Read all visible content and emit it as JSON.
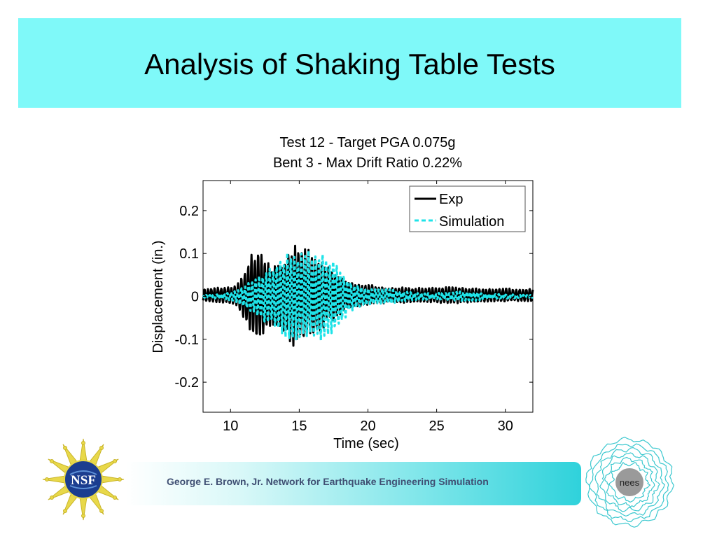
{
  "slide": {
    "title": "Analysis of Shaking Table Tests",
    "title_bar_color": "#7ff9f9"
  },
  "footer": {
    "text": "George E. Brown, Jr. Network for Earthquake Engineering Simulation",
    "nees_label": "nees",
    "nsf_label": "NSF"
  },
  "chart_data": {
    "type": "line",
    "title": [
      "Test 12 - Target PGA 0.075g",
      "Bent 3 - Max Drift Ratio 0.22%"
    ],
    "xlabel": "Time (sec)",
    "ylabel": "Displacement (in.)",
    "xlim": [
      8,
      32
    ],
    "ylim": [
      -0.27,
      0.27
    ],
    "xticks": [
      10,
      15,
      20,
      25,
      30
    ],
    "yticks": [
      0.2,
      0.1,
      0,
      -0.1,
      -0.2
    ],
    "ytick_labels": [
      "0.2",
      "0.1",
      "0",
      "-0.1",
      "-0.2"
    ],
    "legend_position": "top-right",
    "series": [
      {
        "name": "Exp",
        "color": "#000000",
        "style": "solid",
        "envelope": [
          [
            8.0,
            0.015
          ],
          [
            9.0,
            0.018
          ],
          [
            10.0,
            0.02
          ],
          [
            10.5,
            0.025
          ],
          [
            11.0,
            0.06
          ],
          [
            11.5,
            0.1
          ],
          [
            12.0,
            0.11
          ],
          [
            12.5,
            0.085
          ],
          [
            13.0,
            0.07
          ],
          [
            13.5,
            0.08
          ],
          [
            14.0,
            0.09
          ],
          [
            14.5,
            0.12
          ],
          [
            15.0,
            0.115
          ],
          [
            15.5,
            0.11
          ],
          [
            16.0,
            0.1
          ],
          [
            16.5,
            0.09
          ],
          [
            17.0,
            0.07
          ],
          [
            17.5,
            0.06
          ],
          [
            18.0,
            0.05
          ],
          [
            18.5,
            0.035
          ],
          [
            19.0,
            0.03
          ],
          [
            20.0,
            0.025
          ],
          [
            21.0,
            0.02
          ],
          [
            22.0,
            0.018
          ],
          [
            23.0,
            0.018
          ],
          [
            24.0,
            0.017
          ],
          [
            25.0,
            0.018
          ],
          [
            26.0,
            0.02
          ],
          [
            27.0,
            0.018
          ],
          [
            28.0,
            0.016
          ],
          [
            29.0,
            0.015
          ],
          [
            30.0,
            0.016
          ],
          [
            31.0,
            0.015
          ],
          [
            32.0,
            0.015
          ]
        ]
      },
      {
        "name": "Simulation",
        "color": "#1fe3e8",
        "style": "dashed",
        "envelope": [
          [
            8.0,
            0.003
          ],
          [
            9.0,
            0.005
          ],
          [
            10.0,
            0.01
          ],
          [
            10.5,
            0.015
          ],
          [
            11.0,
            0.025
          ],
          [
            11.5,
            0.04
          ],
          [
            12.0,
            0.05
          ],
          [
            12.5,
            0.06
          ],
          [
            13.0,
            0.07
          ],
          [
            13.5,
            0.085
          ],
          [
            14.0,
            0.1
          ],
          [
            14.5,
            0.12
          ],
          [
            15.0,
            0.1
          ],
          [
            15.5,
            0.11
          ],
          [
            16.0,
            0.1
          ],
          [
            16.5,
            0.105
          ],
          [
            17.0,
            0.1
          ],
          [
            17.5,
            0.09
          ],
          [
            18.0,
            0.07
          ],
          [
            18.5,
            0.045
          ],
          [
            19.0,
            0.03
          ],
          [
            20.0,
            0.02
          ],
          [
            21.0,
            0.02
          ],
          [
            22.0,
            0.015
          ],
          [
            23.0,
            0.01
          ],
          [
            24.0,
            0.008
          ],
          [
            25.0,
            0.008
          ],
          [
            26.0,
            0.01
          ],
          [
            27.0,
            0.012
          ],
          [
            28.0,
            0.01
          ],
          [
            29.0,
            0.006
          ],
          [
            30.0,
            0.005
          ],
          [
            31.0,
            0.004
          ],
          [
            32.0,
            0.003
          ]
        ]
      }
    ]
  }
}
